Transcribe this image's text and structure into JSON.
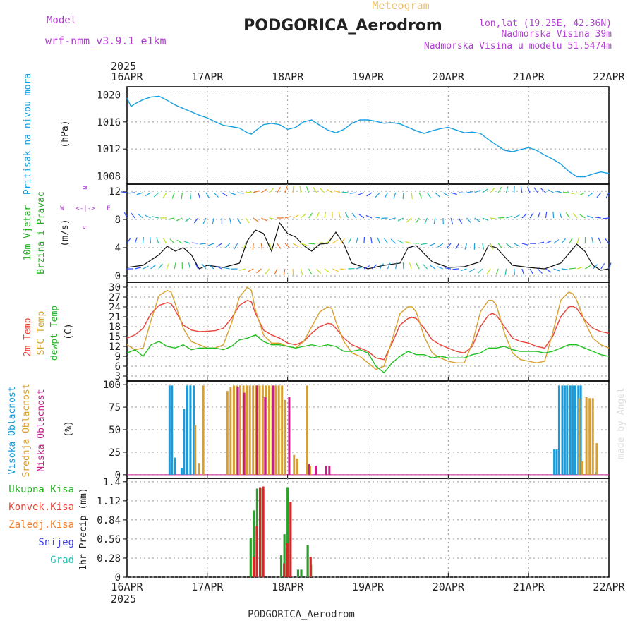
{
  "header": {
    "meteogram_label": "Meteogram",
    "station_title": "PODGORICA_Aerodrom",
    "model_label": "Model",
    "model_name": "wrf-nmm_v3.9.1 e1km",
    "lonlat": "lon,lat (19.25E, 42.36N)",
    "elevation": "Nadmorska Visina 39m",
    "model_elevation": "Nadmorska Visina u modelu 51.5474m",
    "year_top": "2025",
    "year_bottom": "2025",
    "footer_title": "PODGORICA_Aerodrom",
    "credit": "made by Angel"
  },
  "colors": {
    "pressure": "#1aa0e0",
    "temp2m": "#e8443a",
    "sfc_temp": "#d9a030",
    "dewpoint": "#22c022",
    "high_cloud": "#1a9ad8",
    "mid_cloud": "#d8a030",
    "low_cloud": "#c81e8c",
    "total_precip": "#2ca02c",
    "convective": "#d62728",
    "grid": "#999999",
    "purple_text": "#b040d0"
  },
  "chart_data": [
    {
      "type": "line",
      "panel": "pressure",
      "title": "Pritisak na nivou mora",
      "ylabel": "(hPa)",
      "x_unit": "days since 16APR00",
      "x_ticks": [
        "16APR",
        "17APR",
        "18APR",
        "19APR",
        "20APR",
        "21APR",
        "22APR"
      ],
      "yticks": [
        1008,
        1012,
        1016,
        1020
      ],
      "ylim": [
        1006.8,
        1021.2
      ],
      "series": [
        {
          "name": "Pritisak na nivou mora",
          "x": [
            0.0,
            0.05,
            0.1,
            0.2,
            0.3,
            0.4,
            0.5,
            0.6,
            0.7,
            0.8,
            0.9,
            1.0,
            1.1,
            1.2,
            1.3,
            1.4,
            1.5,
            1.55,
            1.6,
            1.7,
            1.8,
            1.9,
            2.0,
            2.1,
            2.2,
            2.3,
            2.4,
            2.5,
            2.6,
            2.7,
            2.8,
            2.9,
            3.0,
            3.1,
            3.2,
            3.3,
            3.4,
            3.5,
            3.6,
            3.7,
            3.8,
            3.9,
            4.0,
            4.1,
            4.2,
            4.3,
            4.4,
            4.5,
            4.6,
            4.7,
            4.8,
            4.9,
            5.0,
            5.1,
            5.2,
            5.3,
            5.4,
            5.5,
            5.6,
            5.7,
            5.8,
            5.9,
            6.0
          ],
          "values": [
            1019.5,
            1018.3,
            1018.7,
            1019.3,
            1019.7,
            1019.8,
            1019.2,
            1018.5,
            1018.0,
            1017.5,
            1017.0,
            1016.6,
            1016.0,
            1015.5,
            1015.3,
            1015.1,
            1014.4,
            1014.2,
            1014.7,
            1015.6,
            1015.8,
            1015.6,
            1014.9,
            1015.2,
            1016.0,
            1016.3,
            1015.5,
            1014.8,
            1014.4,
            1014.9,
            1015.8,
            1016.3,
            1016.3,
            1016.1,
            1015.8,
            1015.9,
            1015.7,
            1015.2,
            1014.7,
            1014.3,
            1014.7,
            1015.0,
            1015.2,
            1014.8,
            1014.4,
            1014.5,
            1014.3,
            1013.4,
            1012.6,
            1011.8,
            1011.6,
            1011.9,
            1012.2,
            1011.8,
            1011.1,
            1010.5,
            1009.8,
            1008.7,
            1007.9,
            1007.9,
            1008.3,
            1008.6,
            1008.4
          ]
        }
      ]
    },
    {
      "type": "line",
      "panel": "wind",
      "title": "10m Vjetar Brzina i Pravac",
      "ylabel": "(m/s)",
      "compass": {
        "north": "N",
        "south": "S",
        "east": "E",
        "west": "W"
      },
      "yticks": [
        0,
        4,
        8,
        12
      ],
      "ylim": [
        -0.9,
        13.0
      ],
      "series": [
        {
          "name": "10m Vjetar Brzina i Pravac",
          "x": [
            0.0,
            0.2,
            0.4,
            0.5,
            0.6,
            0.7,
            0.8,
            0.9,
            1.0,
            1.2,
            1.4,
            1.5,
            1.6,
            1.7,
            1.8,
            1.9,
            2.0,
            2.1,
            2.2,
            2.3,
            2.4,
            2.5,
            2.6,
            2.7,
            2.8,
            3.0,
            3.2,
            3.4,
            3.5,
            3.6,
            3.8,
            4.0,
            4.2,
            4.4,
            4.5,
            4.6,
            4.8,
            5.0,
            5.2,
            5.4,
            5.6,
            5.7,
            5.8,
            5.9,
            6.0
          ],
          "values": [
            1.2,
            1.5,
            3.0,
            4.2,
            3.5,
            4.0,
            3.0,
            1.0,
            1.5,
            1.2,
            1.8,
            5.0,
            6.5,
            6.0,
            3.5,
            7.5,
            6.0,
            5.5,
            4.3,
            3.5,
            4.5,
            4.6,
            6.2,
            4.5,
            1.8,
            1.0,
            1.5,
            1.8,
            4.0,
            4.3,
            2.0,
            1.2,
            1.3,
            2.0,
            4.3,
            4.0,
            1.5,
            1.2,
            1.0,
            1.8,
            4.5,
            3.5,
            1.5,
            0.8,
            1.0
          ]
        }
      ]
    },
    {
      "type": "line",
      "panel": "temperature",
      "title": "2m Temp / SFC Temp / dewpt Temp",
      "ylabel": "(C)",
      "yticks": [
        3,
        6,
        9,
        12,
        15,
        18,
        21,
        24,
        27,
        30
      ],
      "ylim": [
        1.5,
        31.5
      ],
      "series": [
        {
          "name": "2m Temp",
          "x": [
            0.0,
            0.1,
            0.2,
            0.3,
            0.4,
            0.5,
            0.55,
            0.6,
            0.7,
            0.8,
            0.9,
            1.0,
            1.1,
            1.2,
            1.3,
            1.4,
            1.5,
            1.55,
            1.6,
            1.7,
            1.8,
            1.9,
            2.0,
            2.1,
            2.2,
            2.3,
            2.4,
            2.5,
            2.55,
            2.6,
            2.7,
            2.8,
            2.9,
            3.0,
            3.1,
            3.2,
            3.3,
            3.4,
            3.5,
            3.55,
            3.6,
            3.7,
            3.8,
            3.9,
            4.0,
            4.1,
            4.2,
            4.3,
            4.4,
            4.5,
            4.55,
            4.6,
            4.7,
            4.8,
            4.9,
            5.0,
            5.1,
            5.2,
            5.3,
            5.4,
            5.5,
            5.55,
            5.6,
            5.7,
            5.8,
            5.9,
            6.0
          ],
          "values": [
            14.5,
            15.5,
            17.5,
            22.0,
            24.5,
            25.3,
            25.0,
            23.0,
            18.5,
            17.0,
            16.5,
            16.6,
            16.8,
            17.5,
            20.5,
            24.5,
            26.0,
            25.5,
            22.0,
            17.0,
            15.5,
            14.5,
            13.0,
            12.5,
            13.5,
            16.0,
            18.0,
            19.0,
            18.8,
            17.5,
            14.5,
            12.5,
            11.5,
            10.5,
            8.5,
            8.0,
            13.0,
            18.5,
            20.5,
            20.8,
            20.5,
            17.5,
            14.0,
            12.5,
            11.5,
            10.5,
            10.0,
            12.0,
            18.0,
            21.5,
            22.0,
            21.5,
            18.0,
            14.5,
            13.5,
            13.0,
            12.0,
            11.5,
            15.0,
            21.0,
            24.0,
            24.2,
            23.5,
            20.0,
            17.5,
            16.5,
            16.0
          ]
        },
        {
          "name": "SFC Temp",
          "x": [
            0.0,
            0.1,
            0.2,
            0.3,
            0.4,
            0.5,
            0.55,
            0.6,
            0.7,
            0.8,
            0.9,
            1.0,
            1.1,
            1.2,
            1.3,
            1.4,
            1.5,
            1.55,
            1.6,
            1.7,
            1.8,
            1.9,
            2.0,
            2.1,
            2.2,
            2.3,
            2.4,
            2.5,
            2.55,
            2.6,
            2.7,
            2.8,
            2.9,
            3.0,
            3.1,
            3.2,
            3.3,
            3.4,
            3.5,
            3.55,
            3.6,
            3.7,
            3.8,
            3.9,
            4.0,
            4.1,
            4.2,
            4.3,
            4.4,
            4.5,
            4.55,
            4.6,
            4.7,
            4.8,
            4.9,
            5.0,
            5.1,
            5.2,
            5.3,
            5.4,
            5.5,
            5.55,
            5.6,
            5.7,
            5.8,
            5.9,
            6.0
          ],
          "values": [
            12.5,
            11.0,
            11.5,
            20.0,
            27.5,
            29.0,
            28.5,
            25.0,
            17.5,
            13.5,
            12.5,
            11.5,
            11.5,
            12.5,
            19.0,
            27.0,
            30.0,
            29.0,
            23.0,
            15.5,
            13.0,
            13.0,
            12.0,
            11.5,
            13.5,
            18.0,
            22.5,
            24.0,
            23.5,
            19.5,
            13.5,
            10.0,
            9.0,
            7.0,
            5.0,
            6.0,
            14.0,
            22.0,
            24.0,
            24.0,
            22.5,
            15.0,
            10.0,
            8.5,
            7.5,
            7.0,
            7.0,
            13.0,
            22.5,
            26.0,
            26.0,
            24.5,
            16.0,
            10.0,
            8.0,
            7.5,
            7.0,
            7.5,
            16.0,
            26.0,
            28.5,
            28.0,
            26.0,
            19.5,
            14.5,
            12.5,
            11.5
          ]
        },
        {
          "name": "dewpt Temp",
          "x": [
            0.0,
            0.1,
            0.2,
            0.3,
            0.4,
            0.5,
            0.6,
            0.7,
            0.8,
            0.9,
            1.0,
            1.1,
            1.2,
            1.3,
            1.4,
            1.5,
            1.6,
            1.7,
            1.8,
            1.9,
            2.0,
            2.1,
            2.2,
            2.3,
            2.4,
            2.5,
            2.6,
            2.7,
            2.8,
            2.9,
            3.0,
            3.1,
            3.2,
            3.3,
            3.4,
            3.5,
            3.6,
            3.7,
            3.8,
            3.9,
            4.0,
            4.1,
            4.2,
            4.3,
            4.4,
            4.5,
            4.6,
            4.7,
            4.8,
            4.9,
            5.0,
            5.1,
            5.2,
            5.3,
            5.4,
            5.5,
            5.6,
            5.7,
            5.8,
            5.9,
            6.0
          ],
          "values": [
            10.0,
            11.0,
            9.0,
            12.5,
            13.5,
            12.0,
            11.5,
            12.5,
            11.0,
            11.5,
            11.5,
            11.5,
            11.0,
            12.0,
            14.0,
            14.5,
            15.5,
            13.5,
            12.5,
            12.5,
            12.0,
            11.5,
            12.0,
            12.5,
            12.0,
            12.5,
            12.0,
            10.5,
            10.5,
            11.0,
            10.0,
            6.0,
            4.0,
            7.0,
            9.0,
            10.5,
            9.5,
            9.5,
            8.5,
            9.0,
            8.5,
            8.5,
            8.5,
            9.5,
            10.0,
            11.5,
            11.5,
            12.0,
            11.0,
            10.5,
            10.5,
            10.5,
            10.0,
            10.5,
            11.5,
            12.5,
            12.5,
            11.5,
            10.5,
            9.5,
            9.0
          ]
        }
      ]
    },
    {
      "type": "bar",
      "panel": "cloud",
      "title": "Visoka Oblacnost / Srednja Oblacnost / Niska Oblacnost",
      "ylabel": "(%)",
      "yticks": [
        0,
        25,
        50,
        75,
        100
      ],
      "ylim": [
        -4,
        104
      ],
      "series": [
        {
          "name": "Visoka Oblacnost",
          "x": [
            0.53,
            0.56,
            0.6,
            0.68,
            0.71,
            0.75,
            0.79,
            0.83,
            5.32,
            5.35,
            5.38,
            5.42,
            5.45,
            5.48,
            5.52,
            5.55,
            5.58,
            5.62,
            5.65,
            5.84
          ],
          "values": [
            99,
            99,
            19,
            7,
            73,
            99,
            99,
            99,
            28,
            28,
            99,
            99,
            99,
            99,
            99,
            99,
            99,
            99,
            99,
            3
          ]
        },
        {
          "name": "Srednja Oblacnost",
          "x": [
            0.85,
            0.9,
            0.95,
            1.25,
            1.29,
            1.33,
            1.37,
            1.41,
            1.45,
            1.49,
            1.53,
            1.57,
            1.61,
            1.65,
            1.69,
            1.73,
            1.77,
            1.81,
            1.85,
            1.89,
            1.93,
            1.97,
            2.08,
            2.12,
            2.24,
            2.28,
            5.63,
            5.67,
            5.72,
            5.76,
            5.8,
            5.85
          ],
          "values": [
            55,
            13,
            99,
            93,
            97,
            99,
            99,
            99,
            99,
            99,
            99,
            99,
            99,
            99,
            99,
            99,
            99,
            99,
            99,
            99,
            99,
            83,
            22,
            18,
            99,
            10,
            85,
            15,
            86,
            85,
            85,
            35
          ]
        },
        {
          "name": "Niska Oblacnost",
          "x": [
            1.38,
            1.46,
            1.62,
            1.72,
            1.82,
            2.02,
            2.27,
            2.35,
            2.48,
            2.52
          ],
          "values": [
            97,
            91,
            99,
            86,
            99,
            86,
            12,
            10,
            10,
            10
          ]
        }
      ]
    },
    {
      "type": "bar",
      "panel": "precip",
      "title": "Ukupna Kisa / Konvek.Kisa / Zaledj.Kisa / Snijeg / Grad",
      "ylabel": "1hr Precip (mm)",
      "yticks": [
        0,
        0.28,
        0.56,
        0.84,
        1.12,
        1.4
      ],
      "ytick_labels": [
        "0",
        "0.28",
        "0.56",
        "0.84",
        "1.12",
        "1.4"
      ],
      "ylim": [
        0,
        1.45
      ],
      "series": [
        {
          "name": "Ukupna Kisa",
          "x": [
            1.54,
            1.58,
            1.62,
            1.66,
            1.92,
            1.96,
            2.0,
            2.13,
            2.17,
            2.25,
            2.29
          ],
          "values": [
            0.57,
            0.98,
            1.3,
            1.31,
            0.32,
            0.63,
            1.32,
            0.11,
            0.11,
            0.47,
            0.18
          ]
        },
        {
          "name": "Konvek.Kisa",
          "x": [
            1.55,
            1.59,
            1.63,
            1.67,
            1.93,
            1.97,
            2.01,
            2.26
          ],
          "values": [
            0.3,
            0.75,
            1.32,
            1.33,
            0.2,
            0.5,
            1.1,
            0.3
          ]
        }
      ],
      "legend": [
        "Ukupna Kisa",
        "Konvek.Kisa",
        "Zaledj.Kisa",
        "Snijeg",
        "Grad"
      ]
    }
  ]
}
